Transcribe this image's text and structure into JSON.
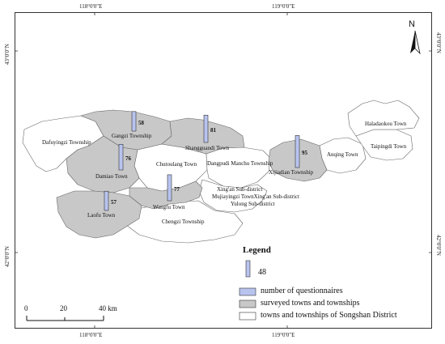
{
  "coordinates": {
    "top": [
      "118°0'0\"E",
      "119°0'0\"E"
    ],
    "bottom": [
      "118°0'0\"E",
      "119°0'0\"E"
    ],
    "left": [
      "43°0'0\"N",
      "42°0'0\"N"
    ],
    "right": [
      "43°0'0\"N",
      "42°0'0\"N"
    ]
  },
  "north_arrow": {
    "label": "N"
  },
  "places": {
    "dafuyingzi": "Dafuyingzi Township",
    "gangzi": "Gangzi Township",
    "shangguandi": "Shangguandi Town",
    "chutoulang": "Chutoulang Town",
    "dangpudi": "Dangpudi Manchu Township",
    "xijiadian": "Xijiadian Township",
    "damiao": "Damiao Town",
    "xingan": "Xing'an Sub-district",
    "mujiayingzi": "Mujiayingzi TownXing'an Sub-district",
    "yulong": "Yulong Sub-district",
    "laofu": "Laofu Town",
    "wangfu": "Wangfu Town",
    "chengzi": "Chengzi Township",
    "haladaokou": "Haladaokou Town",
    "anqing": "Anqing Town",
    "taipingdi": "Taipingdi Town"
  },
  "questionnaires": [
    {
      "town": "Gangzi Township",
      "value": 58
    },
    {
      "town": "Shangguandi Town",
      "value": 81
    },
    {
      "town": "Xijiadian Township",
      "value": 95
    },
    {
      "town": "Damiao Town",
      "value": 76
    },
    {
      "town": "Wangfu Town",
      "value": 77
    },
    {
      "town": "Laofu Town",
      "value": 57
    }
  ],
  "legend": {
    "title": "Legend",
    "sample_value": "48",
    "items": [
      {
        "label": "number of questionnaires",
        "color": "#b8c4ee"
      },
      {
        "label": "surveyed towns and townships",
        "color": "#c8c8c8"
      },
      {
        "label": "towns and townships of Songshan District",
        "color": "#ffffff"
      }
    ]
  },
  "scale_bar": {
    "labels": [
      "0",
      "20",
      "40 km"
    ]
  },
  "colors": {
    "surveyed": "#c8c8c8",
    "other": "#ffffff",
    "bar": "#b8c4ee",
    "boundary": "#666666"
  }
}
